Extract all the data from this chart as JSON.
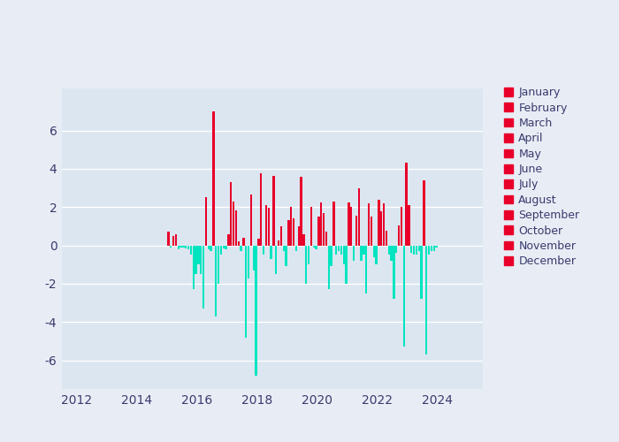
{
  "background_color": "#dce6f1",
  "figure_bg": "#e8edf5",
  "positive_color": "#e8002a",
  "negative_color": "#00e5c0",
  "xlim": [
    2011.5,
    2025.5
  ],
  "ylim": [
    -7.5,
    8.2
  ],
  "yticks": [
    -6,
    -4,
    -2,
    0,
    2,
    4,
    6
  ],
  "xticks": [
    2012,
    2014,
    2016,
    2018,
    2020,
    2022,
    2024
  ],
  "legend_months": [
    "January",
    "February",
    "March",
    "April",
    "May",
    "June",
    "July",
    "August",
    "September",
    "October",
    "November",
    "December"
  ],
  "bar_width": 0.065,
  "data": [
    {
      "year": 2015,
      "month": 1,
      "value": 0.7
    },
    {
      "year": 2015,
      "month": 2,
      "value": -0.1
    },
    {
      "year": 2015,
      "month": 3,
      "value": 0.5
    },
    {
      "year": 2015,
      "month": 4,
      "value": 0.6
    },
    {
      "year": 2015,
      "month": 5,
      "value": -0.2
    },
    {
      "year": 2015,
      "month": 6,
      "value": -0.1
    },
    {
      "year": 2015,
      "month": 7,
      "value": -0.1
    },
    {
      "year": 2015,
      "month": 8,
      "value": -0.15
    },
    {
      "year": 2015,
      "month": 9,
      "value": -0.2
    },
    {
      "year": 2015,
      "month": 10,
      "value": -0.5
    },
    {
      "year": 2015,
      "month": 11,
      "value": -2.3
    },
    {
      "year": 2015,
      "month": 12,
      "value": -1.5
    },
    {
      "year": 2016,
      "month": 1,
      "value": -1.0
    },
    {
      "year": 2016,
      "month": 2,
      "value": -1.5
    },
    {
      "year": 2016,
      "month": 3,
      "value": -3.3
    },
    {
      "year": 2016,
      "month": 4,
      "value": 2.5
    },
    {
      "year": 2016,
      "month": 5,
      "value": -0.2
    },
    {
      "year": 2016,
      "month": 6,
      "value": -0.3
    },
    {
      "year": 2016,
      "month": 7,
      "value": 7.0
    },
    {
      "year": 2016,
      "month": 8,
      "value": -3.7
    },
    {
      "year": 2016,
      "month": 9,
      "value": -2.0
    },
    {
      "year": 2016,
      "month": 10,
      "value": -0.5
    },
    {
      "year": 2016,
      "month": 11,
      "value": -0.15
    },
    {
      "year": 2016,
      "month": 12,
      "value": -0.2
    },
    {
      "year": 2017,
      "month": 1,
      "value": 0.6
    },
    {
      "year": 2017,
      "month": 2,
      "value": 3.3
    },
    {
      "year": 2017,
      "month": 3,
      "value": 2.3
    },
    {
      "year": 2017,
      "month": 4,
      "value": 1.85
    },
    {
      "year": 2017,
      "month": 5,
      "value": 0.2
    },
    {
      "year": 2017,
      "month": 6,
      "value": -0.3
    },
    {
      "year": 2017,
      "month": 7,
      "value": 0.4
    },
    {
      "year": 2017,
      "month": 8,
      "value": -4.8
    },
    {
      "year": 2017,
      "month": 9,
      "value": -1.75
    },
    {
      "year": 2017,
      "month": 10,
      "value": 2.65
    },
    {
      "year": 2017,
      "month": 11,
      "value": -1.3
    },
    {
      "year": 2017,
      "month": 12,
      "value": -6.8
    },
    {
      "year": 2018,
      "month": 1,
      "value": 0.35
    },
    {
      "year": 2018,
      "month": 2,
      "value": 3.75
    },
    {
      "year": 2018,
      "month": 3,
      "value": -0.5
    },
    {
      "year": 2018,
      "month": 4,
      "value": 2.1
    },
    {
      "year": 2018,
      "month": 5,
      "value": 1.95
    },
    {
      "year": 2018,
      "month": 6,
      "value": -0.7
    },
    {
      "year": 2018,
      "month": 7,
      "value": 3.65
    },
    {
      "year": 2018,
      "month": 8,
      "value": -1.5
    },
    {
      "year": 2018,
      "month": 9,
      "value": 0.25
    },
    {
      "year": 2018,
      "month": 10,
      "value": 1.0
    },
    {
      "year": 2018,
      "month": 11,
      "value": -0.3
    },
    {
      "year": 2018,
      "month": 12,
      "value": -1.1
    },
    {
      "year": 2019,
      "month": 1,
      "value": 1.3
    },
    {
      "year": 2019,
      "month": 2,
      "value": 2.0
    },
    {
      "year": 2019,
      "month": 3,
      "value": 1.4
    },
    {
      "year": 2019,
      "month": 4,
      "value": -0.3
    },
    {
      "year": 2019,
      "month": 5,
      "value": 1.0
    },
    {
      "year": 2019,
      "month": 6,
      "value": 3.6
    },
    {
      "year": 2019,
      "month": 7,
      "value": 0.6
    },
    {
      "year": 2019,
      "month": 8,
      "value": -2.0
    },
    {
      "year": 2019,
      "month": 9,
      "value": -1.0
    },
    {
      "year": 2019,
      "month": 10,
      "value": 2.0
    },
    {
      "year": 2019,
      "month": 11,
      "value": -0.1
    },
    {
      "year": 2019,
      "month": 12,
      "value": -0.2
    },
    {
      "year": 2020,
      "month": 1,
      "value": 1.5
    },
    {
      "year": 2020,
      "month": 2,
      "value": 2.25
    },
    {
      "year": 2020,
      "month": 3,
      "value": 1.7
    },
    {
      "year": 2020,
      "month": 4,
      "value": 0.7
    },
    {
      "year": 2020,
      "month": 5,
      "value": -2.3
    },
    {
      "year": 2020,
      "month": 6,
      "value": -1.1
    },
    {
      "year": 2020,
      "month": 7,
      "value": 2.3
    },
    {
      "year": 2020,
      "month": 8,
      "value": -0.5
    },
    {
      "year": 2020,
      "month": 9,
      "value": -0.3
    },
    {
      "year": 2020,
      "month": 10,
      "value": -0.5
    },
    {
      "year": 2020,
      "month": 11,
      "value": -1.0
    },
    {
      "year": 2020,
      "month": 12,
      "value": -2.0
    },
    {
      "year": 2021,
      "month": 1,
      "value": 2.25
    },
    {
      "year": 2021,
      "month": 2,
      "value": 2.0
    },
    {
      "year": 2021,
      "month": 3,
      "value": -0.8
    },
    {
      "year": 2021,
      "month": 4,
      "value": 1.55
    },
    {
      "year": 2021,
      "month": 5,
      "value": 3.0
    },
    {
      "year": 2021,
      "month": 6,
      "value": -0.8
    },
    {
      "year": 2021,
      "month": 7,
      "value": -0.5
    },
    {
      "year": 2021,
      "month": 8,
      "value": -2.5
    },
    {
      "year": 2021,
      "month": 9,
      "value": 2.2
    },
    {
      "year": 2021,
      "month": 10,
      "value": 1.5
    },
    {
      "year": 2021,
      "month": 11,
      "value": -0.6
    },
    {
      "year": 2021,
      "month": 12,
      "value": -1.0
    },
    {
      "year": 2022,
      "month": 1,
      "value": 2.4
    },
    {
      "year": 2022,
      "month": 2,
      "value": 1.8
    },
    {
      "year": 2022,
      "month": 3,
      "value": 2.2
    },
    {
      "year": 2022,
      "month": 4,
      "value": 0.75
    },
    {
      "year": 2022,
      "month": 5,
      "value": -0.5
    },
    {
      "year": 2022,
      "month": 6,
      "value": -0.8
    },
    {
      "year": 2022,
      "month": 7,
      "value": -2.8
    },
    {
      "year": 2022,
      "month": 8,
      "value": -0.4
    },
    {
      "year": 2022,
      "month": 9,
      "value": 1.05
    },
    {
      "year": 2022,
      "month": 10,
      "value": 2.0
    },
    {
      "year": 2022,
      "month": 11,
      "value": -5.3
    },
    {
      "year": 2022,
      "month": 12,
      "value": 4.3
    },
    {
      "year": 2023,
      "month": 1,
      "value": 2.1
    },
    {
      "year": 2023,
      "month": 2,
      "value": -0.4
    },
    {
      "year": 2023,
      "month": 3,
      "value": -0.5
    },
    {
      "year": 2023,
      "month": 4,
      "value": -0.5
    },
    {
      "year": 2023,
      "month": 5,
      "value": -0.3
    },
    {
      "year": 2023,
      "month": 6,
      "value": -2.8
    },
    {
      "year": 2023,
      "month": 7,
      "value": 3.4
    },
    {
      "year": 2023,
      "month": 8,
      "value": -5.7
    },
    {
      "year": 2023,
      "month": 9,
      "value": -0.5
    },
    {
      "year": 2023,
      "month": 10,
      "value": -0.3
    },
    {
      "year": 2023,
      "month": 11,
      "value": -0.3
    },
    {
      "year": 2023,
      "month": 12,
      "value": -0.1
    }
  ]
}
